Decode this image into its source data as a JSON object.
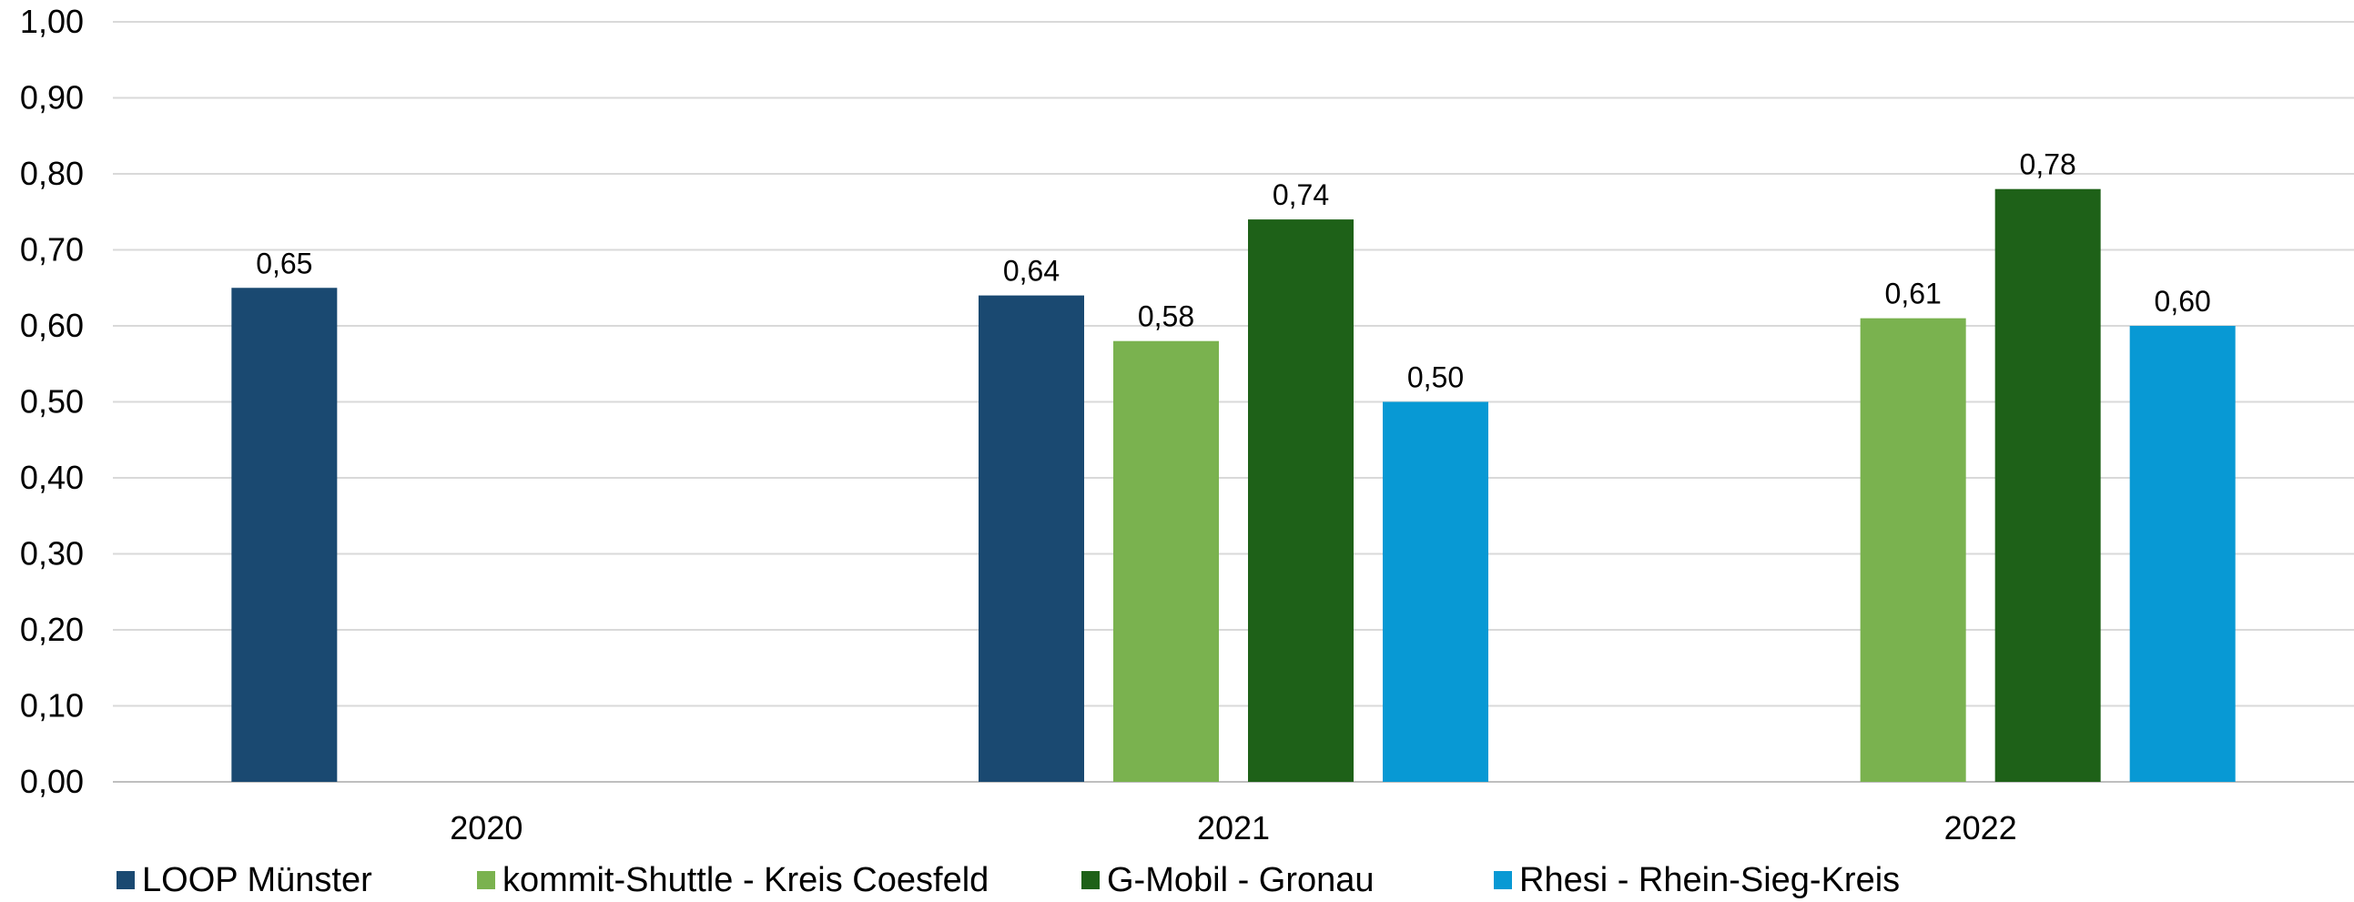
{
  "chart_data": {
    "type": "bar",
    "title": "",
    "xlabel": "",
    "ylabel": "",
    "ylim": [
      0,
      1.0
    ],
    "ytick_step": 0.1,
    "ytick_labels": [
      "0,00",
      "0,10",
      "0,20",
      "0,30",
      "0,40",
      "0,50",
      "0,60",
      "0,70",
      "0,80",
      "0,90",
      "1,00"
    ],
    "grid": "horizontal",
    "legend_position": "bottom",
    "categories": [
      "2020",
      "2021",
      "2022"
    ],
    "series": [
      {
        "name": "LOOP Münster",
        "color": "#1A4971",
        "values": [
          0.65,
          0.64,
          null
        ],
        "labels": [
          "0,65",
          "0,64",
          ""
        ]
      },
      {
        "name": "kommit-Shuttle - Kreis Coesfeld",
        "color": "#7AB24F",
        "values": [
          null,
          0.58,
          0.61
        ],
        "labels": [
          "",
          "0,58",
          "0,61"
        ]
      },
      {
        "name": "G-Mobil - Gronau",
        "color": "#1E6118",
        "values": [
          null,
          0.74,
          0.78
        ],
        "labels": [
          "",
          "0,74",
          "0,78"
        ]
      },
      {
        "name": "Rhesi - Rhein-Sieg-Kreis",
        "color": "#0899D4",
        "values": [
          null,
          0.5,
          0.6
        ],
        "labels": [
          "",
          "0,50",
          "0,60"
        ]
      }
    ]
  }
}
